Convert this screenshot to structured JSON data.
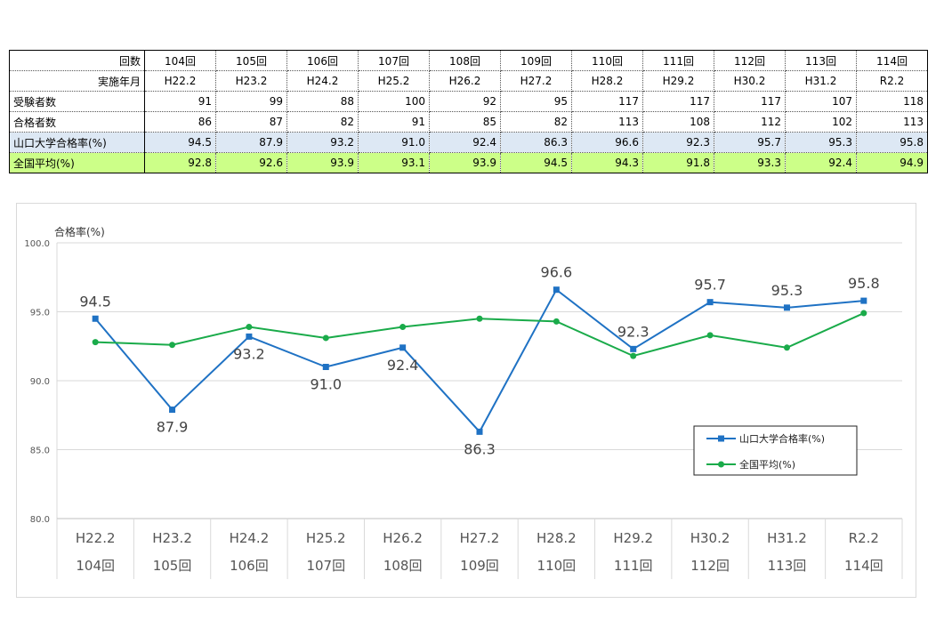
{
  "table": {
    "header_label": "回数",
    "date_label": "実施年月",
    "rounds": [
      "104回",
      "105回",
      "106回",
      "107回",
      "108回",
      "109回",
      "110回",
      "111回",
      "112回",
      "113回",
      "114回"
    ],
    "dates": [
      "H22.2",
      "H23.2",
      "H24.2",
      "H25.2",
      "H26.2",
      "H27.2",
      "H28.2",
      "H29.2",
      "H30.2",
      "H31.2",
      "R2.2"
    ],
    "rows": [
      {
        "label": "受験者数",
        "values": [
          "91",
          "99",
          "88",
          "100",
          "92",
          "95",
          "117",
          "117",
          "117",
          "107",
          "118"
        ]
      },
      {
        "label": "合格者数",
        "values": [
          "86",
          "87",
          "82",
          "91",
          "85",
          "82",
          "113",
          "108",
          "112",
          "102",
          "113"
        ]
      },
      {
        "label": "山口大学合格率(%)",
        "values": [
          "94.5",
          "87.9",
          "93.2",
          "91.0",
          "92.4",
          "86.3",
          "96.6",
          "92.3",
          "95.7",
          "95.3",
          "95.8"
        ]
      },
      {
        "label": "全国平均(%)",
        "values": [
          "92.8",
          "92.6",
          "93.9",
          "93.1",
          "93.9",
          "94.5",
          "94.3",
          "91.8",
          "93.3",
          "92.4",
          "94.9"
        ]
      }
    ]
  },
  "chart_data": {
    "type": "line",
    "title": "",
    "ylabel": "合格率(%)",
    "ylim": [
      80,
      100
    ],
    "yticks": [
      "80.0",
      "85.0",
      "90.0",
      "95.0",
      "100.0"
    ],
    "ytick_values": [
      80,
      85,
      90,
      95,
      100
    ],
    "categories": [
      "H22.2",
      "H23.2",
      "H24.2",
      "H25.2",
      "H26.2",
      "H27.2",
      "H28.2",
      "H29.2",
      "H30.2",
      "H31.2",
      "R2.2"
    ],
    "categories_sub": [
      "104回",
      "105回",
      "106回",
      "107回",
      "108回",
      "109回",
      "110回",
      "111回",
      "112回",
      "113回",
      "114回"
    ],
    "grid": true,
    "legend_position": "right",
    "series": [
      {
        "name": "山口大学合格率(%)",
        "color": "#1f72c4",
        "marker": "square",
        "values": [
          94.5,
          87.9,
          93.2,
          91.0,
          92.4,
          86.3,
          96.6,
          92.3,
          95.7,
          95.3,
          95.8
        ],
        "labels": [
          "94.5",
          "87.9",
          "93.2",
          "91.0",
          "92.4",
          "86.3",
          "96.6",
          "92.3",
          "95.7",
          "95.3",
          "95.8"
        ]
      },
      {
        "name": "全国平均(%)",
        "color": "#1aab4a",
        "marker": "circle",
        "values": [
          92.8,
          92.6,
          93.9,
          93.1,
          93.9,
          94.5,
          94.3,
          91.8,
          93.3,
          92.4,
          94.9
        ]
      }
    ]
  }
}
